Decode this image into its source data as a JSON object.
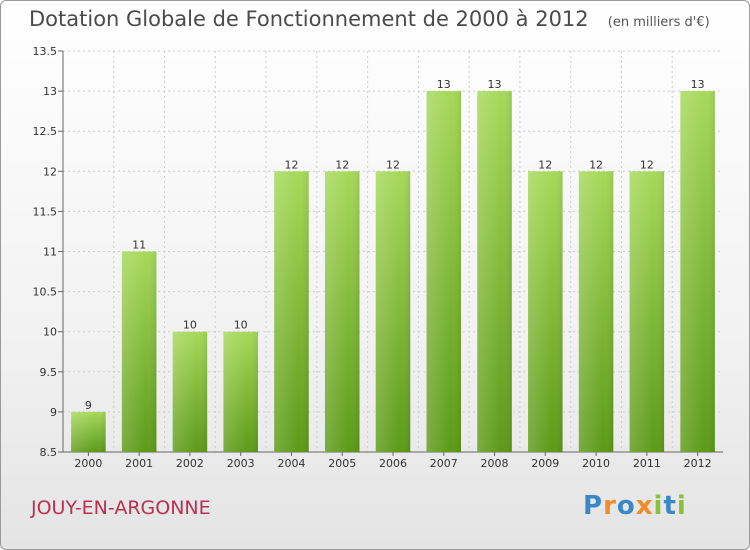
{
  "title": "Dotation Globale de Fonctionnement de 2000 à 2012",
  "unit": "(en milliers d'€)",
  "commune": "JOUY-EN-ARGONNE",
  "logo": {
    "text": "Proxiti",
    "letters": [
      "P",
      "r",
      "o",
      "x",
      "i",
      "t",
      "i"
    ],
    "colors": [
      "#3a87c8",
      "#f28c28",
      "#3a87c8",
      "#f28c28",
      "#8bbf3c",
      "#3a87c8",
      "#8bbf3c"
    ]
  },
  "colors": {
    "bar_top": "#a6d95a",
    "bar_bottom": "#5c9a18",
    "grid": "#cccccc",
    "commune": "#b8304f"
  },
  "chart_data": {
    "type": "bar",
    "title": "Dotation Globale de Fonctionnement de 2000 à 2012",
    "subtitle": "(en milliers d'€)",
    "categories": [
      "2000",
      "2001",
      "2002",
      "2003",
      "2004",
      "2005",
      "2006",
      "2007",
      "2008",
      "2009",
      "2010",
      "2011",
      "2012"
    ],
    "values": [
      9,
      11,
      10,
      10,
      12,
      12,
      12,
      13,
      13,
      12,
      12,
      12,
      13
    ],
    "ylim": [
      8.5,
      13.5
    ],
    "yticks": [
      "8.5",
      "9",
      "9.5",
      "10",
      "10.5",
      "11",
      "11.5",
      "12",
      "12.5",
      "13",
      "13.5"
    ],
    "grid": true,
    "xlabel": "",
    "ylabel": ""
  }
}
